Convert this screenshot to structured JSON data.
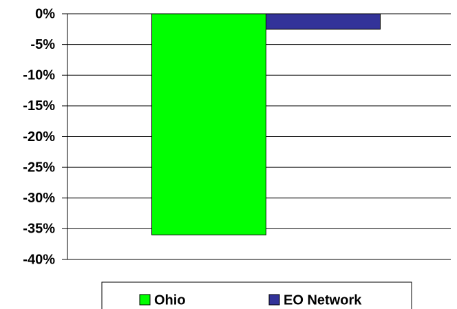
{
  "chart_data": {
    "type": "bar",
    "categories": [
      null
    ],
    "series": [
      {
        "name": "Ohio",
        "color": "#00ff00",
        "values": [
          -36
        ]
      },
      {
        "name": "EO Network",
        "color": "#333399",
        "values": [
          -2.5
        ]
      }
    ],
    "ylim": [
      -40,
      0
    ],
    "yticks": [
      {
        "value": 0,
        "label": "0%"
      },
      {
        "value": -5,
        "label": "-5%"
      },
      {
        "value": -10,
        "label": "-10%"
      },
      {
        "value": -15,
        "label": "-15%"
      },
      {
        "value": -20,
        "label": "-20%"
      },
      {
        "value": -25,
        "label": "-25%"
      },
      {
        "value": -30,
        "label": "-30%"
      },
      {
        "value": -35,
        "label": "-35%"
      },
      {
        "value": -40,
        "label": "-40%"
      }
    ],
    "grid": true,
    "legend": "bottom"
  }
}
